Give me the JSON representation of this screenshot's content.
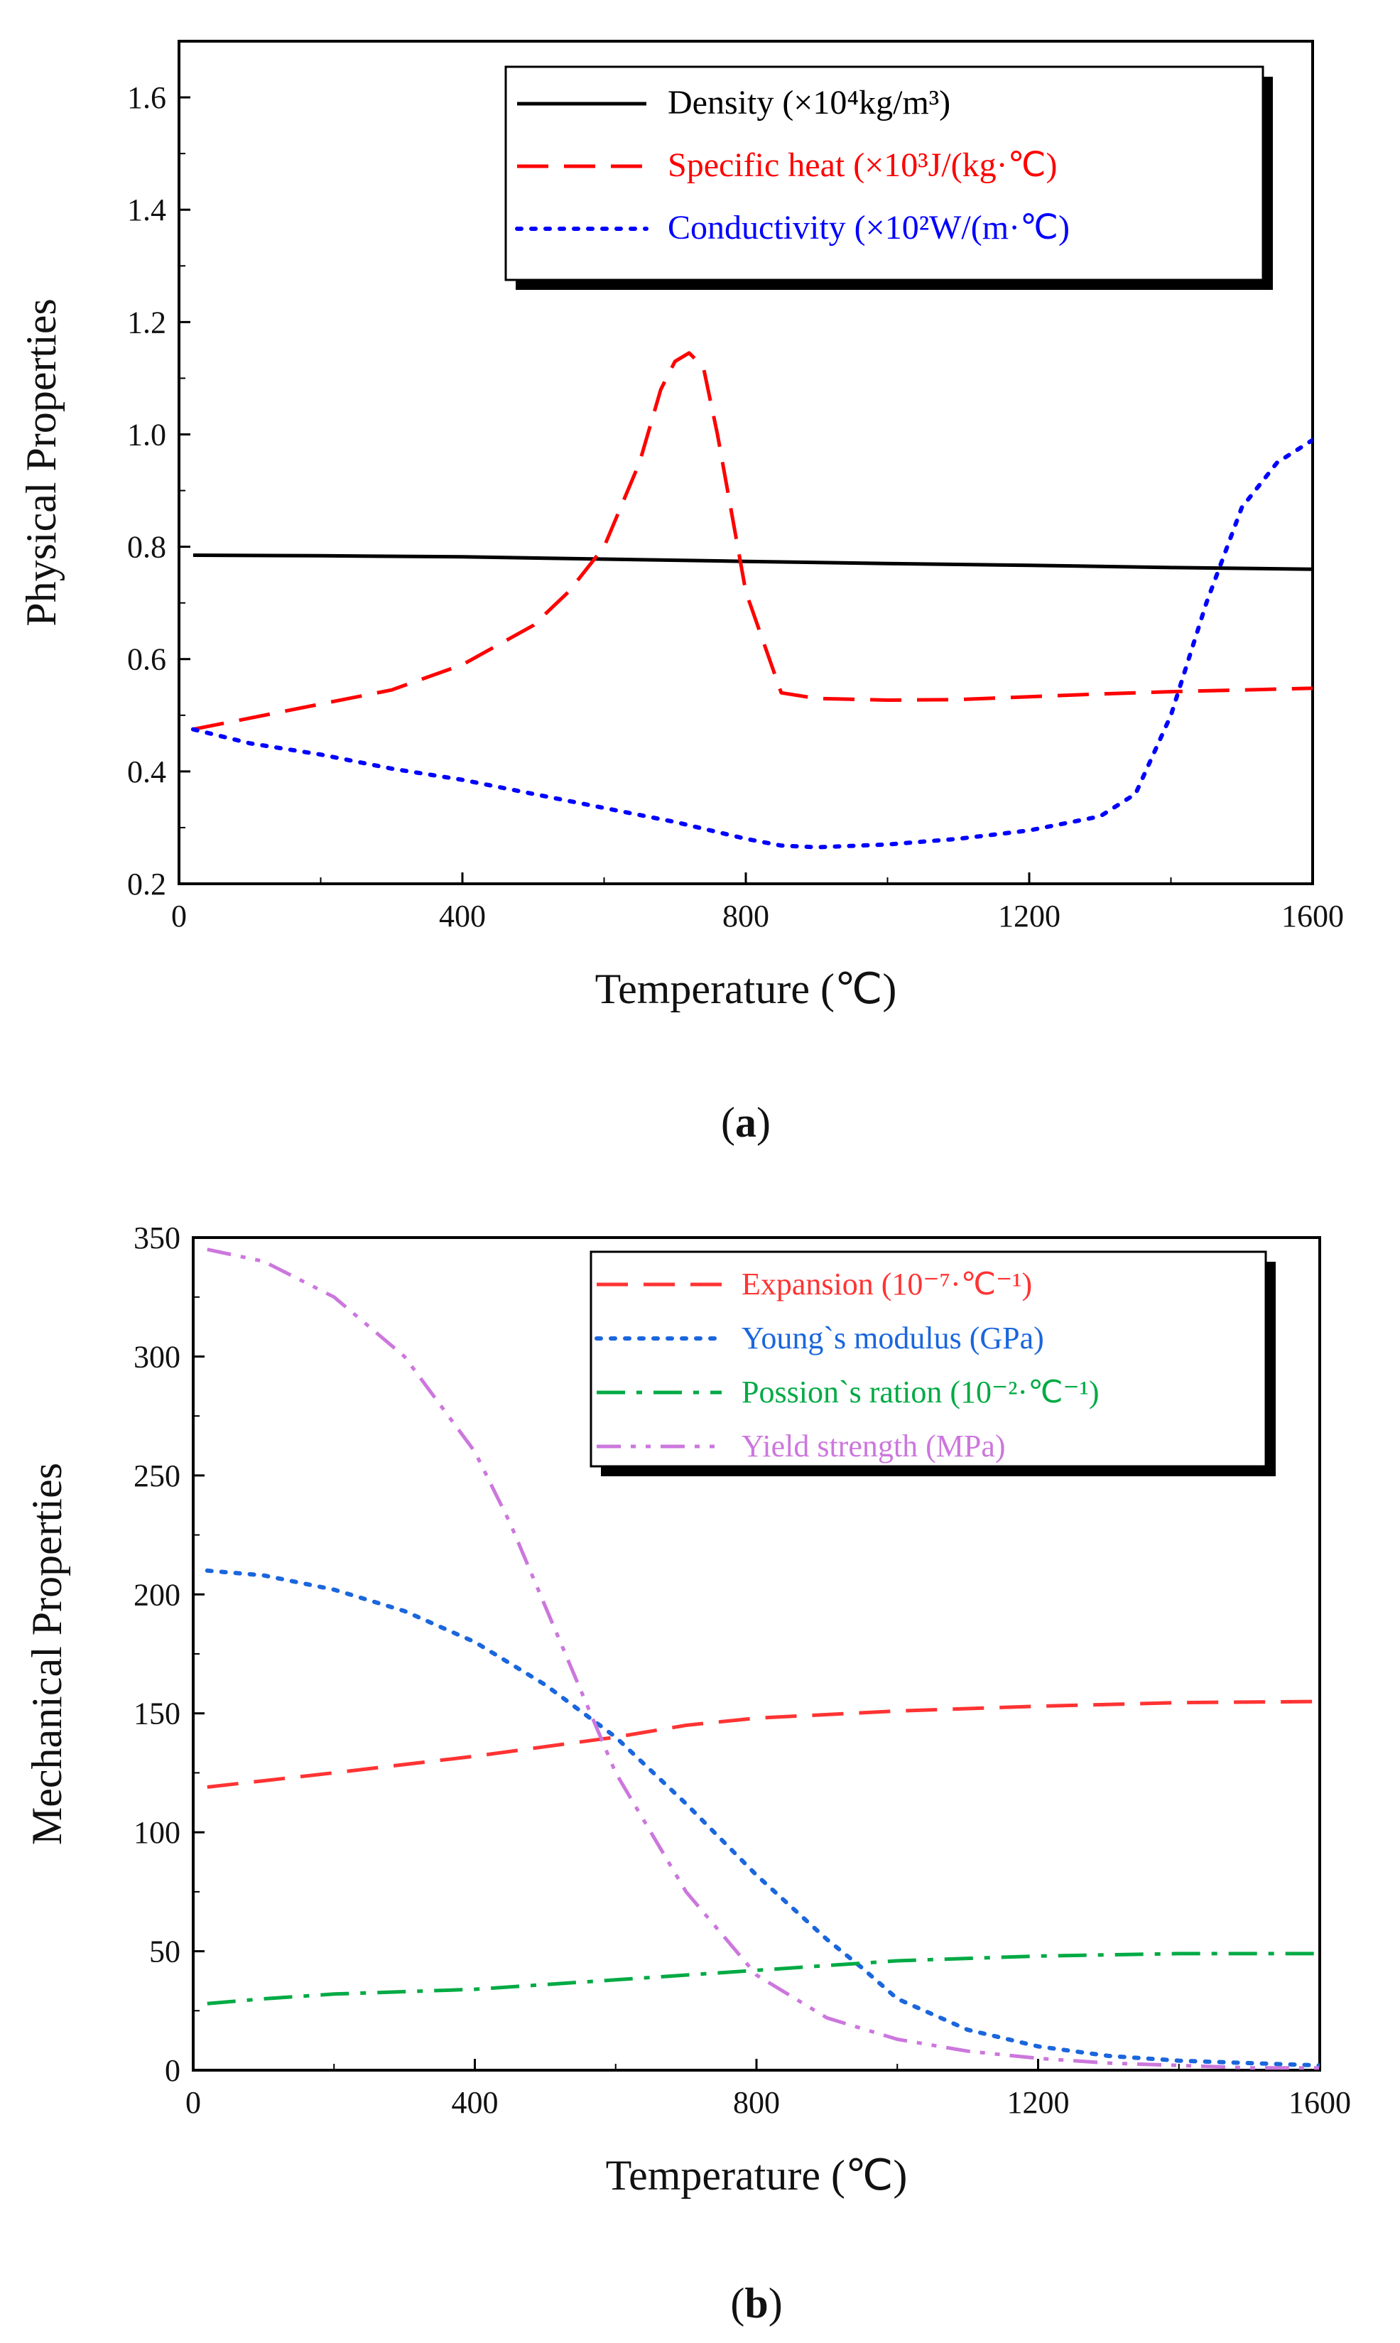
{
  "chart_data": [
    {
      "type": "line",
      "panel_label": "(a)",
      "panel_letter": "a",
      "xlabel": "Temperature (℃)",
      "ylabel": "Physical Properties",
      "xlim": [
        0,
        1600
      ],
      "ylim": [
        0.2,
        1.7
      ],
      "xticks": [
        "0",
        "400",
        "800",
        "1200",
        "1600"
      ],
      "yticks": [
        "0.2",
        "0.4",
        "0.6",
        "0.8",
        "1.0",
        "1.2",
        "1.4",
        "1.6"
      ],
      "legend_position": "top-right",
      "grid": false,
      "series": [
        {
          "name": "Density  (×10⁴kg/m³)",
          "color": "#000000",
          "dash": "solid",
          "x": [
            20,
            200,
            400,
            600,
            800,
            1000,
            1200,
            1400,
            1600
          ],
          "y": [
            0.785,
            0.784,
            0.782,
            0.778,
            0.774,
            0.77,
            0.767,
            0.763,
            0.76
          ]
        },
        {
          "name": "Specific heat  (×10³J/(kg·℃)",
          "color": "#ff0000",
          "dash": "dashed",
          "x": [
            20,
            100,
            200,
            300,
            400,
            500,
            550,
            600,
            650,
            680,
            700,
            720,
            740,
            760,
            800,
            850,
            900,
            1000,
            1100,
            1200,
            1300,
            1400,
            1500,
            1600
          ],
          "y": [
            0.475,
            0.495,
            0.52,
            0.545,
            0.59,
            0.66,
            0.72,
            0.8,
            0.95,
            1.08,
            1.13,
            1.145,
            1.12,
            1.0,
            0.72,
            0.54,
            0.53,
            0.527,
            0.528,
            0.533,
            0.538,
            0.542,
            0.545,
            0.548
          ]
        },
        {
          "name": "Conductivity (×10²W/(m·℃)",
          "color": "#0000ff",
          "dash": "dotted",
          "x": [
            20,
            100,
            200,
            300,
            400,
            500,
            600,
            700,
            800,
            850,
            900,
            1000,
            1100,
            1200,
            1300,
            1350,
            1400,
            1450,
            1500,
            1550,
            1600
          ],
          "y": [
            0.475,
            0.45,
            0.43,
            0.405,
            0.385,
            0.36,
            0.335,
            0.31,
            0.28,
            0.268,
            0.265,
            0.27,
            0.28,
            0.295,
            0.32,
            0.36,
            0.5,
            0.7,
            0.87,
            0.95,
            0.99
          ]
        }
      ]
    },
    {
      "type": "line",
      "panel_label": "(b)",
      "panel_letter": "b",
      "xlabel": "Temperature (℃)",
      "ylabel": "Mechanical Properties",
      "xlim": [
        0,
        1600
      ],
      "ylim": [
        0,
        350
      ],
      "xticks": [
        "0",
        "400",
        "800",
        "1200",
        "1600"
      ],
      "yticks": [
        "0",
        "50",
        "100",
        "150",
        "200",
        "250",
        "300",
        "350"
      ],
      "legend_position": "top-right",
      "grid": false,
      "series": [
        {
          "name": "Expansion (10⁻⁷·℃⁻¹)",
          "color": "#ff3333",
          "dash": "dashed",
          "x": [
            20,
            200,
            400,
            600,
            700,
            800,
            1000,
            1200,
            1400,
            1600
          ],
          "y": [
            119,
            125,
            132,
            140,
            145,
            148,
            151,
            153,
            154.5,
            155
          ]
        },
        {
          "name": "Young`s modulus (GPa)",
          "color": "#1a66dd",
          "dash": "dotted",
          "x": [
            20,
            100,
            200,
            300,
            400,
            500,
            600,
            700,
            800,
            900,
            950,
            1000,
            1100,
            1200,
            1300,
            1400,
            1500,
            1600
          ],
          "y": [
            210,
            208,
            202,
            193,
            180,
            162,
            140,
            112,
            82,
            55,
            43,
            30,
            17,
            10,
            6,
            4,
            3,
            2
          ]
        },
        {
          "name": "Possion`s ration (10⁻²·℃⁻¹)",
          "color": "#00aa44",
          "dash": "dashdot",
          "x": [
            20,
            100,
            200,
            400,
            600,
            800,
            1000,
            1200,
            1400,
            1600
          ],
          "y": [
            28,
            30,
            32,
            34,
            38,
            42,
            46,
            48,
            49,
            49
          ]
        },
        {
          "name": "Yield strength (MPa)",
          "color": "#cc77dd",
          "dash": "dashdotdot",
          "x": [
            20,
            100,
            200,
            300,
            400,
            450,
            500,
            550,
            600,
            700,
            800,
            900,
            1000,
            1100,
            1200,
            1300,
            1400,
            1500,
            1600
          ],
          "y": [
            345,
            340,
            325,
            300,
            260,
            230,
            195,
            160,
            125,
            75,
            40,
            22,
            13,
            8,
            5,
            3,
            2,
            1,
            1
          ]
        }
      ]
    }
  ]
}
